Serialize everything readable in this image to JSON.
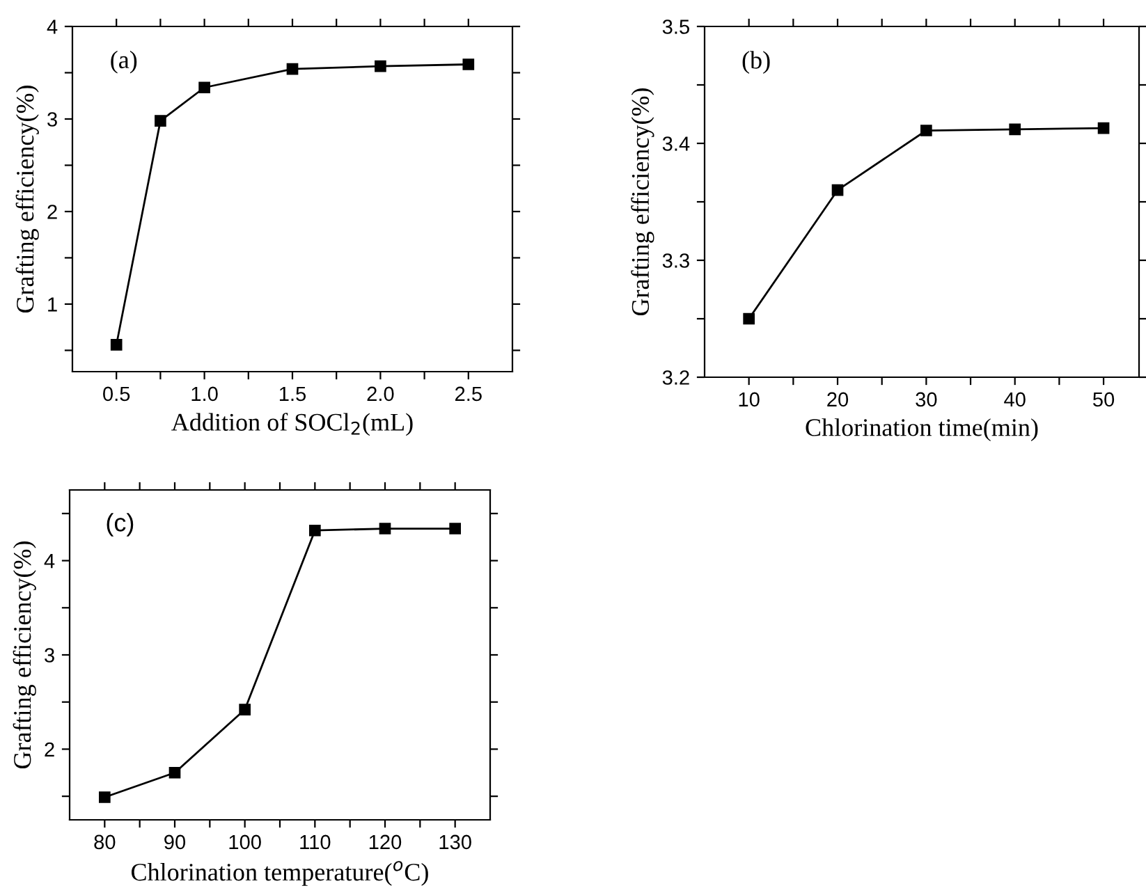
{
  "chart_data": [
    {
      "type": "line",
      "xlabel": "Addition of SOCl$_{2}$(mL)",
      "ylabel": "Grafting efficiency(%)",
      "annotations": [
        "(a)"
      ],
      "marker": "square",
      "line_style": "solid",
      "grid": false,
      "x": [
        0.5,
        0.75,
        1.0,
        1.5,
        2.0,
        2.5
      ],
      "series": [
        {
          "color": "#000000",
          "values": [
            0.56,
            2.98,
            3.34,
            3.54,
            3.57,
            3.59
          ]
        }
      ],
      "xlim": [
        0.25,
        2.75
      ],
      "ylim": [
        0.27,
        4
      ],
      "xticks": [
        {
          "value": 0.5,
          "label": "0.5"
        },
        {
          "value": 0.75,
          "label": null
        },
        {
          "value": 1.0,
          "label": "1.0"
        },
        {
          "value": 1.25,
          "label": null
        },
        {
          "value": 1.5,
          "label": "1.5"
        },
        {
          "value": 1.75,
          "label": null
        },
        {
          "value": 2.0,
          "label": "2.0"
        },
        {
          "value": 2.25,
          "label": null
        },
        {
          "value": 2.5,
          "label": "2.5"
        }
      ],
      "yticks": [
        {
          "value": 0.5,
          "label": null
        },
        1,
        {
          "value": 1.5,
          "label": null
        },
        2,
        {
          "value": 2.5,
          "label": null
        },
        3,
        {
          "value": 3.5,
          "label": null
        },
        4
      ]
    },
    {
      "type": "line",
      "xlabel": "Chlorination time(min)",
      "ylabel": "Grafting efficiency(%)",
      "annotations": [
        "(b)"
      ],
      "marker": "square",
      "line_style": "solid",
      "grid": false,
      "x": [
        10,
        20,
        30,
        40,
        50
      ],
      "series": [
        {
          "color": "#000000",
          "values": [
            3.25,
            3.36,
            3.411,
            3.412,
            3.413
          ]
        }
      ],
      "xlim": [
        5,
        54
      ],
      "ylim": [
        3.2,
        3.5
      ],
      "xticks": [
        10,
        {
          "value": 15,
          "label": null
        },
        20,
        {
          "value": 25,
          "label": null
        },
        30,
        {
          "value": 35,
          "label": null
        },
        40,
        {
          "value": 45,
          "label": null
        },
        50
      ],
      "yticks": [
        {
          "value": 3.2,
          "label": "3.2"
        },
        {
          "value": 3.25,
          "label": null
        },
        {
          "value": 3.3,
          "label": "3.3"
        },
        {
          "value": 3.35,
          "label": null
        },
        {
          "value": 3.4,
          "label": "3.4"
        },
        {
          "value": 3.45,
          "label": null
        },
        {
          "value": 3.5,
          "label": "3.5"
        }
      ]
    },
    {
      "type": "line",
      "xlabel": "Chlorination temperature($^{o}$C)",
      "ylabel": "Grafting efficiency(%)",
      "annotations": [
        "(c)"
      ],
      "marker": "square",
      "line_style": "solid",
      "grid": false,
      "x": [
        80,
        90,
        100,
        110,
        120,
        130
      ],
      "series": [
        {
          "color": "#000000",
          "values": [
            1.49,
            1.75,
            2.42,
            4.32,
            4.34,
            4.34
          ]
        }
      ],
      "xlim": [
        75,
        135
      ],
      "ylim": [
        1.25,
        4.75
      ],
      "xticks": [
        80,
        {
          "value": 85,
          "label": null
        },
        90,
        {
          "value": 95,
          "label": null
        },
        100,
        {
          "value": 105,
          "label": null
        },
        110,
        {
          "value": 115,
          "label": null
        },
        120,
        {
          "value": 125,
          "label": null
        },
        130
      ],
      "yticks": [
        {
          "value": 1.5,
          "label": null
        },
        2,
        {
          "value": 2.5,
          "label": null
        },
        3,
        {
          "value": 3.5,
          "label": null
        },
        4,
        {
          "value": 4.5,
          "label": null
        }
      ]
    }
  ]
}
